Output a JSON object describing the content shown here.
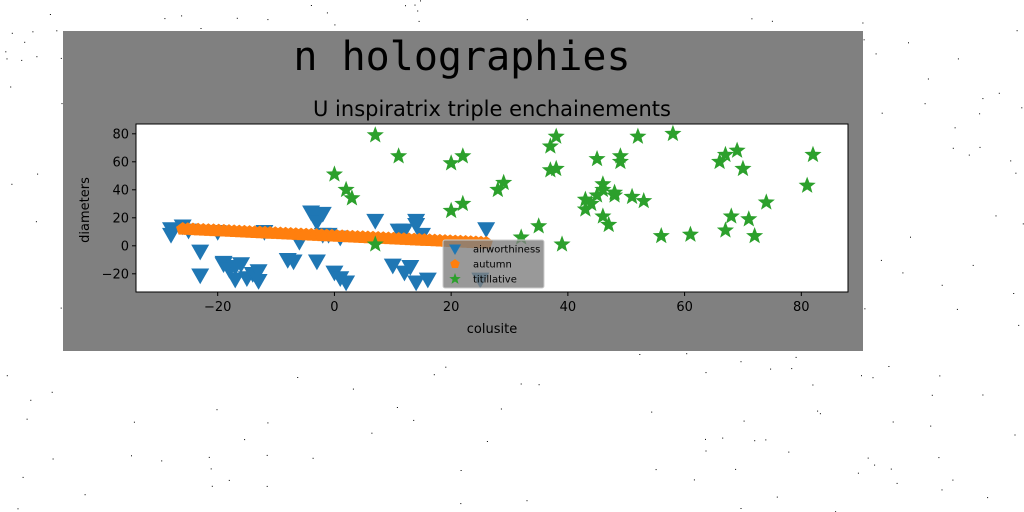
{
  "figure": {
    "background": "#808080",
    "noise_background": "#ffffff"
  },
  "chart_data": {
    "type": "scatter",
    "suptitle": "n holographies",
    "title": "U inspiratrix triple enchainements",
    "xlabel": "colusite",
    "ylabel": "diameters",
    "xlim": [
      -34,
      88
    ],
    "ylim": [
      -33,
      87
    ],
    "xticks": [
      -20,
      0,
      20,
      40,
      60,
      80
    ],
    "yticks": [
      -20,
      0,
      20,
      40,
      60,
      80
    ],
    "xtick_labels": [
      "−20",
      "0",
      "20",
      "40",
      "60",
      "80"
    ],
    "ytick_labels": [
      "−20",
      "0",
      "20",
      "40",
      "60",
      "80"
    ],
    "grid": false,
    "legend_position": "lower-center",
    "series": [
      {
        "name": "airworthiness",
        "marker": "triangle-down",
        "color": "#1f77b4",
        "points": [
          [
            -28,
            12
          ],
          [
            -28,
            8
          ],
          [
            -26,
            14
          ],
          [
            -25,
            11
          ],
          [
            -23,
            -4
          ],
          [
            -23,
            -21
          ],
          [
            -20,
            10
          ],
          [
            -19,
            -13
          ],
          [
            -19,
            -12
          ],
          [
            -18,
            -17
          ],
          [
            -17,
            -15
          ],
          [
            -17,
            -24
          ],
          [
            -16,
            -13
          ],
          [
            -15,
            -23
          ],
          [
            -14,
            -20
          ],
          [
            -13,
            -18
          ],
          [
            -13,
            -25
          ],
          [
            -12,
            10
          ],
          [
            -8,
            -10
          ],
          [
            -7,
            -11
          ],
          [
            -6,
            3
          ],
          [
            -4,
            24
          ],
          [
            -3,
            21
          ],
          [
            -3,
            17
          ],
          [
            -3,
            -11
          ],
          [
            -2,
            23
          ],
          [
            -2,
            8
          ],
          [
            -1,
            8
          ],
          [
            0,
            -19
          ],
          [
            1,
            -23
          ],
          [
            1,
            6
          ],
          [
            2,
            -26
          ],
          [
            7,
            18
          ],
          [
            10,
            -14
          ],
          [
            11,
            11
          ],
          [
            12,
            11
          ],
          [
            12,
            -19
          ],
          [
            13,
            -15
          ],
          [
            14,
            -26
          ],
          [
            14,
            18
          ],
          [
            14,
            15
          ],
          [
            15,
            8
          ],
          [
            16,
            -24
          ],
          [
            25,
            -24
          ],
          [
            26,
            12
          ]
        ]
      },
      {
        "name": "autumn",
        "marker": "pentagon",
        "color": "#ff7f0e",
        "line": {
          "x_start": -26,
          "y_start": 12,
          "x_end": 26,
          "y_end": 2,
          "count": 60
        }
      },
      {
        "name": "titillative",
        "marker": "star",
        "color": "#2ca02c",
        "points": [
          [
            0,
            51
          ],
          [
            2,
            40
          ],
          [
            3,
            34
          ],
          [
            7,
            79
          ],
          [
            7,
            1
          ],
          [
            11,
            64
          ],
          [
            20,
            25
          ],
          [
            20,
            59
          ],
          [
            22,
            30
          ],
          [
            22,
            64
          ],
          [
            28,
            40
          ],
          [
            29,
            45
          ],
          [
            32,
            6
          ],
          [
            35,
            14
          ],
          [
            37,
            54
          ],
          [
            37,
            71
          ],
          [
            38,
            55
          ],
          [
            38,
            78
          ],
          [
            39,
            1
          ],
          [
            43,
            26
          ],
          [
            43,
            33
          ],
          [
            44,
            30
          ],
          [
            45,
            36
          ],
          [
            45,
            62
          ],
          [
            46,
            40
          ],
          [
            46,
            44
          ],
          [
            46,
            21
          ],
          [
            47,
            15
          ],
          [
            48,
            36
          ],
          [
            48,
            38
          ],
          [
            49,
            60
          ],
          [
            49,
            64
          ],
          [
            51,
            35
          ],
          [
            52,
            78
          ],
          [
            53,
            32
          ],
          [
            56,
            7
          ],
          [
            58,
            80
          ],
          [
            61,
            8
          ],
          [
            66,
            60
          ],
          [
            67,
            65
          ],
          [
            67,
            11
          ],
          [
            68,
            21
          ],
          [
            69,
            68
          ],
          [
            70,
            55
          ],
          [
            71,
            19
          ],
          [
            72,
            7
          ],
          [
            74,
            31
          ],
          [
            81,
            43
          ],
          [
            82,
            65
          ]
        ]
      }
    ]
  }
}
